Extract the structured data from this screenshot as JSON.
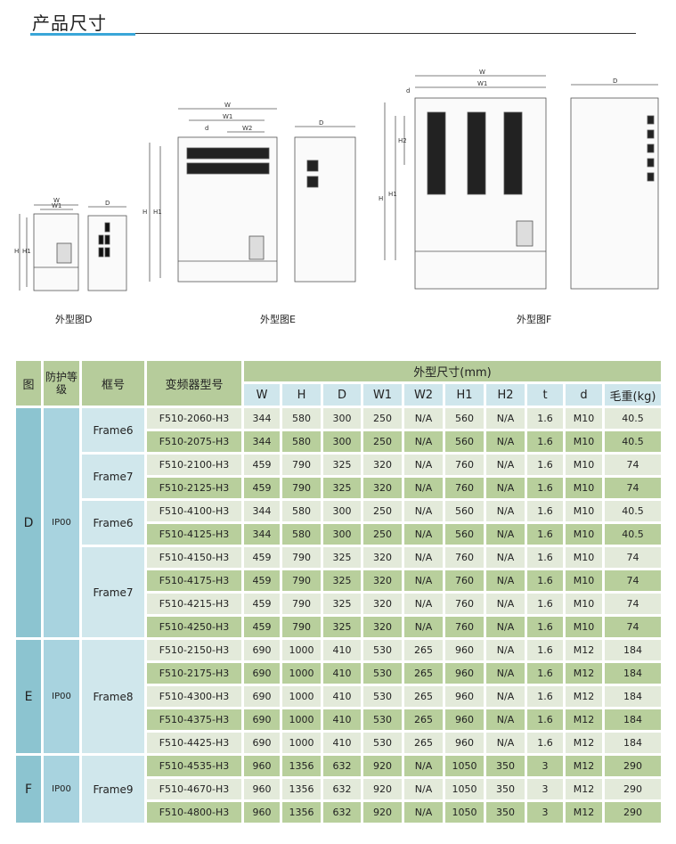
{
  "section_title": "产品尺寸",
  "colors": {
    "accent": "#3aa6d8",
    "header_green": "#b6cc9b",
    "row_light": "#e3eada",
    "row_dark": "#b8cf9c",
    "fig_col": "#8cc4d0",
    "ip_col": "#a8d3df",
    "frame_col": "#d0e7ec"
  },
  "drawings": {
    "captions": [
      "外型图D",
      "外型图E",
      "外型图F"
    ],
    "labels": {
      "W": "W",
      "W1": "W1",
      "W2": "W2",
      "H": "H",
      "H1": "H1",
      "H2": "H2",
      "D": "D",
      "d": "d"
    }
  },
  "table": {
    "headers": {
      "fig": "图",
      "ip": "防护等级",
      "frame": "框号",
      "model": "变频器型号",
      "dims": "外型尺寸(mm)"
    },
    "dim_columns": [
      "W",
      "H",
      "D",
      "W1",
      "W2",
      "H1",
      "H2",
      "t",
      "d",
      "毛重(kg)"
    ],
    "groups": [
      {
        "fig": "D",
        "ip": "IP00",
        "frames": [
          {
            "name": "Frame6",
            "rows": [
              [
                "F510-2060-H3",
                "344",
                "580",
                "300",
                "250",
                "N/A",
                "560",
                "N/A",
                "1.6",
                "M10",
                "40.5"
              ],
              [
                "F510-2075-H3",
                "344",
                "580",
                "300",
                "250",
                "N/A",
                "560",
                "N/A",
                "1.6",
                "M10",
                "40.5"
              ]
            ]
          },
          {
            "name": "Frame7",
            "rows": [
              [
                "F510-2100-H3",
                "459",
                "790",
                "325",
                "320",
                "N/A",
                "760",
                "N/A",
                "1.6",
                "M10",
                "74"
              ],
              [
                "F510-2125-H3",
                "459",
                "790",
                "325",
                "320",
                "N/A",
                "760",
                "N/A",
                "1.6",
                "M10",
                "74"
              ]
            ]
          },
          {
            "name": "Frame6",
            "rows": [
              [
                "F510-4100-H3",
                "344",
                "580",
                "300",
                "250",
                "N/A",
                "560",
                "N/A",
                "1.6",
                "M10",
                "40.5"
              ],
              [
                "F510-4125-H3",
                "344",
                "580",
                "300",
                "250",
                "N/A",
                "560",
                "N/A",
                "1.6",
                "M10",
                "40.5"
              ]
            ]
          },
          {
            "name": "Frame7",
            "rows": [
              [
                "F510-4150-H3",
                "459",
                "790",
                "325",
                "320",
                "N/A",
                "760",
                "N/A",
                "1.6",
                "M10",
                "74"
              ],
              [
                "F510-4175-H3",
                "459",
                "790",
                "325",
                "320",
                "N/A",
                "760",
                "N/A",
                "1.6",
                "M10",
                "74"
              ],
              [
                "F510-4215-H3",
                "459",
                "790",
                "325",
                "320",
                "N/A",
                "760",
                "N/A",
                "1.6",
                "M10",
                "74"
              ],
              [
                "F510-4250-H3",
                "459",
                "790",
                "325",
                "320",
                "N/A",
                "760",
                "N/A",
                "1.6",
                "M10",
                "74"
              ]
            ]
          }
        ]
      },
      {
        "fig": "E",
        "ip": "IP00",
        "frames": [
          {
            "name": "Frame8",
            "rows": [
              [
                "F510-2150-H3",
                "690",
                "1000",
                "410",
                "530",
                "265",
                "960",
                "N/A",
                "1.6",
                "M12",
                "184"
              ],
              [
                "F510-2175-H3",
                "690",
                "1000",
                "410",
                "530",
                "265",
                "960",
                "N/A",
                "1.6",
                "M12",
                "184"
              ],
              [
                "F510-4300-H3",
                "690",
                "1000",
                "410",
                "530",
                "265",
                "960",
                "N/A",
                "1.6",
                "M12",
                "184"
              ],
              [
                "F510-4375-H3",
                "690",
                "1000",
                "410",
                "530",
                "265",
                "960",
                "N/A",
                "1.6",
                "M12",
                "184"
              ],
              [
                "F510-4425-H3",
                "690",
                "1000",
                "410",
                "530",
                "265",
                "960",
                "N/A",
                "1.6",
                "M12",
                "184"
              ]
            ]
          }
        ]
      },
      {
        "fig": "F",
        "ip": "IP00",
        "frames": [
          {
            "name": "Frame9",
            "rows": [
              [
                "F510-4535-H3",
                "960",
                "1356",
                "632",
                "920",
                "N/A",
                "1050",
                "350",
                "3",
                "M12",
                "290"
              ],
              [
                "F510-4670-H3",
                "960",
                "1356",
                "632",
                "920",
                "N/A",
                "1050",
                "350",
                "3",
                "M12",
                "290"
              ],
              [
                "F510-4800-H3",
                "960",
                "1356",
                "632",
                "920",
                "N/A",
                "1050",
                "350",
                "3",
                "M12",
                "290"
              ]
            ]
          }
        ]
      }
    ]
  }
}
